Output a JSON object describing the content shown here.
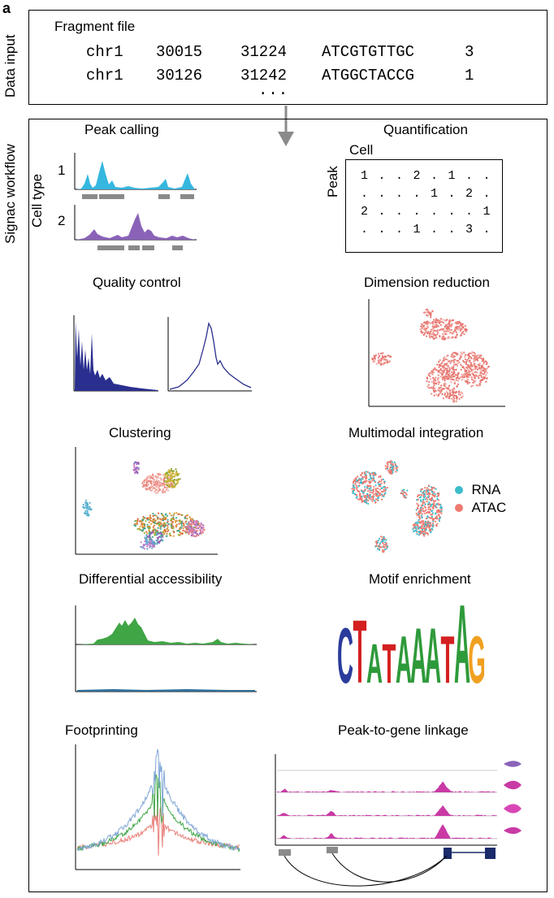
{
  "panel_letter": "a",
  "data_input": {
    "side_label": "Data input",
    "file_title": "Fragment file",
    "rows": [
      [
        "chr1",
        "30015",
        "31224",
        "ATCGTGTTGC",
        "3"
      ],
      [
        "chr1",
        "30126",
        "31242",
        "ATGGCTACCG",
        "1"
      ]
    ],
    "ellipsis": "..."
  },
  "workflow": {
    "side_label": "Signac workflow",
    "peak_calling": {
      "title": "Peak calling",
      "y_label": "Cell type",
      "track1": "1",
      "track2": "2"
    },
    "quantification": {
      "title": "Quantification",
      "col_label": "Cell",
      "row_label": "Peak",
      "matrix": [
        [
          "1",
          ".",
          ".",
          "2",
          ".",
          "1",
          ".",
          "."
        ],
        [
          ".",
          ".",
          ".",
          ".",
          "1",
          ".",
          "2",
          "."
        ],
        [
          "2",
          ".",
          ".",
          ".",
          ".",
          ".",
          ".",
          "1"
        ],
        [
          ".",
          ".",
          ".",
          "1",
          ".",
          ".",
          "3",
          "."
        ]
      ]
    },
    "quality_control": {
      "title": "Quality control",
      "color": "#2a2f8f"
    },
    "dimension_reduction": {
      "title": "Dimension reduction",
      "color": "#e8807a"
    },
    "clustering": {
      "title": "Clustering"
    },
    "multimodal_integration": {
      "title": "Multimodal integration",
      "legend": [
        {
          "label": "RNA",
          "color": "#3cbccb"
        },
        {
          "label": "ATAC",
          "color": "#ee7a70"
        }
      ]
    },
    "differential_accessibility": {
      "title": "Differential accessibility",
      "color": "#3fa545"
    },
    "motif_enrichment": {
      "title": "Motif enrichment",
      "motif": "CTATAAATAG"
    },
    "footprinting": {
      "title": "Footprinting"
    },
    "peak_to_gene": {
      "title": "Peak-to-gene linkage",
      "color": "#c93aa5"
    }
  }
}
